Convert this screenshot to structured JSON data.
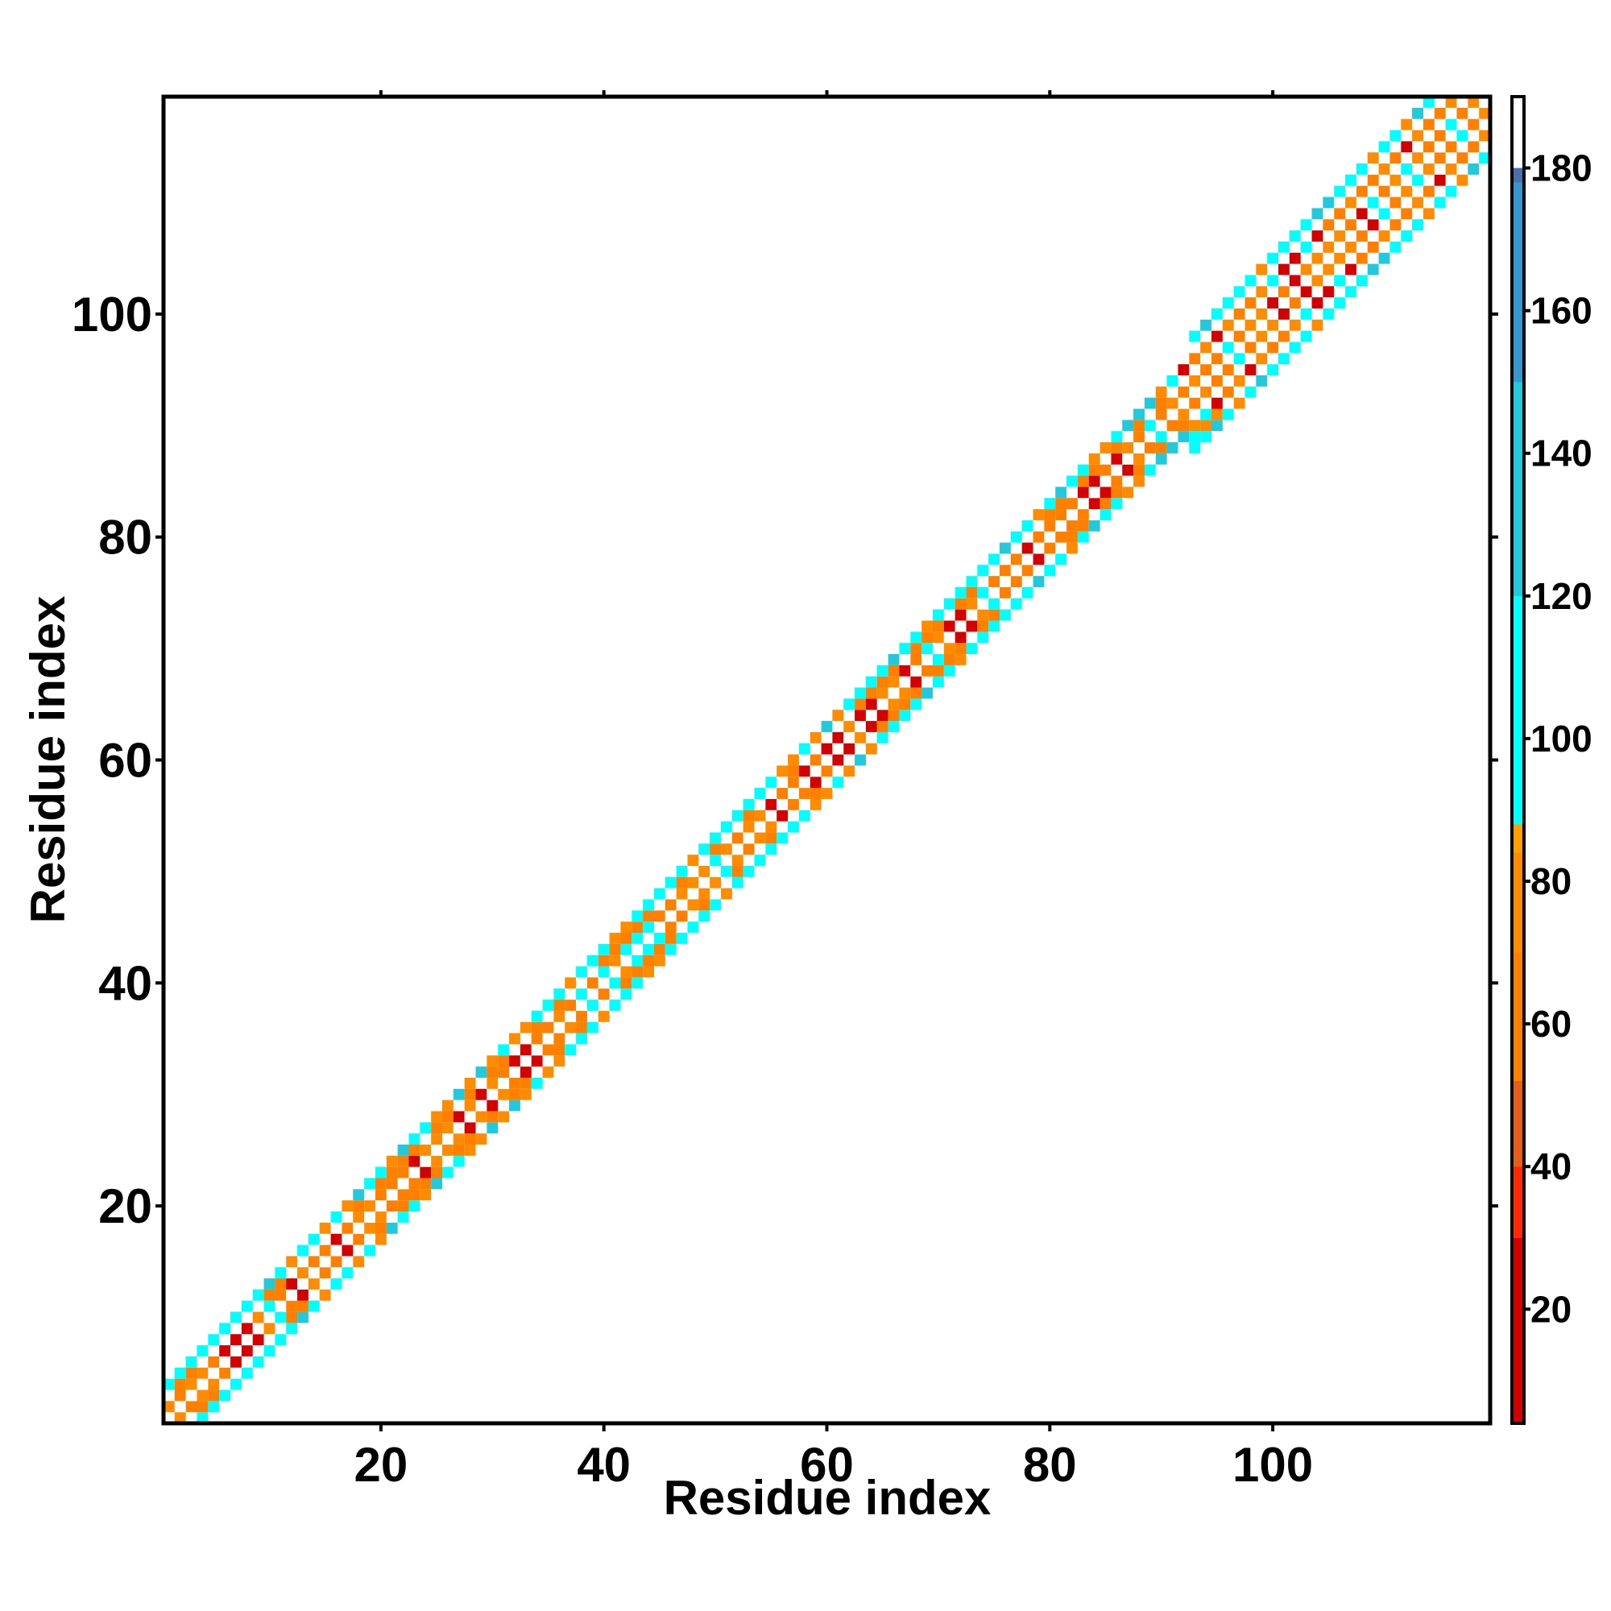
{
  "chart_data": {
    "type": "heatmap",
    "xlabel": "Residue index",
    "ylabel": "Residue index",
    "xlim": [
      0.5,
      119.5
    ],
    "ylim": [
      0.5,
      119.5
    ],
    "xticks": [
      20,
      40,
      60,
      80,
      100
    ],
    "yticks": [
      20,
      40,
      60,
      80,
      100
    ],
    "xtick_labels": [
      "20",
      "40",
      "60",
      "80",
      "100"
    ],
    "ytick_labels": [
      "20",
      "40",
      "60",
      "80",
      "100"
    ],
    "n_residues": 119,
    "band_halfwidth_by_segment": [
      {
        "from": 1,
        "to": 60,
        "halfwidth": 3
      },
      {
        "from": 61,
        "to": 92,
        "halfwidth": 3
      },
      {
        "from": 93,
        "to": 119,
        "halfwidth": 5
      }
    ],
    "diagonal_value": 190,
    "colorbar": {
      "range": [
        4,
        190
      ],
      "ticks": [
        20,
        40,
        60,
        80,
        100,
        120,
        140,
        160,
        180
      ],
      "tick_labels": [
        "20",
        "40",
        "60",
        "80",
        "100",
        "120",
        "140",
        "160",
        "180"
      ],
      "stops": [
        {
          "value": 4,
          "color": "#d40000"
        },
        {
          "value": 30,
          "color": "#ff2a00"
        },
        {
          "value": 40,
          "color": "#e85d1a"
        },
        {
          "value": 52,
          "color": "#ff7f00"
        },
        {
          "value": 70,
          "color": "#ff8c00"
        },
        {
          "value": 84,
          "color": "#ffa000"
        },
        {
          "value": 88,
          "color": "#00ffff"
        },
        {
          "value": 120,
          "color": "#22c8dc"
        },
        {
          "value": 150,
          "color": "#3399cc"
        },
        {
          "value": 178,
          "color": "#4a6fb0"
        },
        {
          "value": 180,
          "color": "#ffffff"
        },
        {
          "value": 190,
          "color": "#ffffff"
        }
      ]
    },
    "cell_classes": {
      "red": 18,
      "orange": 55,
      "light_orange": 78,
      "cyan": 100,
      "blue": 130,
      "white": 190
    }
  }
}
